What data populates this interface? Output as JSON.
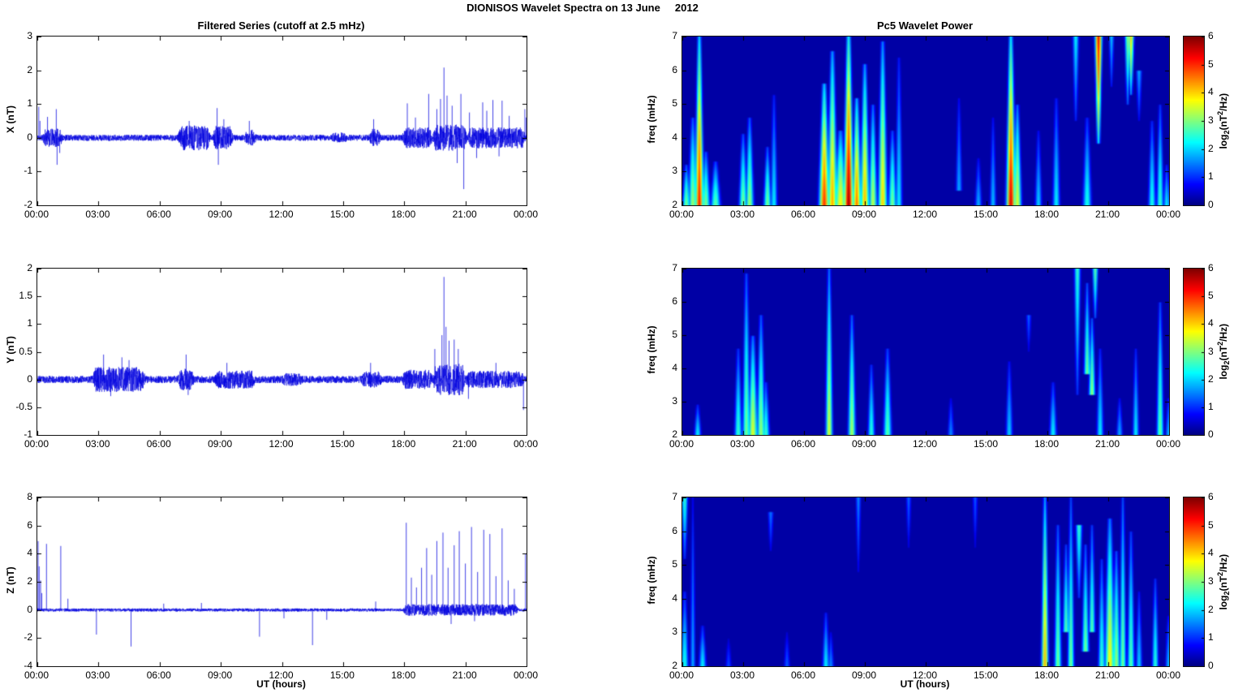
{
  "page_title": "DIONISOS Wavelet Spectra on 13 June     2012",
  "panel_titles": {
    "left": "Filtered Series (cutoff at 2.5 mHz)",
    "right": "Pc5 Wavelet Power"
  },
  "axis": {
    "time_label": "UT (hours)",
    "time_ticks": [
      "00:00",
      "03:00",
      "06:00",
      "09:00",
      "12:00",
      "15:00",
      "18:00",
      "21:00",
      "00:00"
    ],
    "time_hours": [
      0,
      3,
      6,
      9,
      12,
      15,
      18,
      21,
      24
    ]
  },
  "colorbar": {
    "range": [
      0,
      6
    ],
    "ticks": [
      0,
      1,
      2,
      3,
      4,
      5,
      6
    ],
    "label": {
      "pre": "log",
      "sub": "2",
      "mid": "(nT",
      "sup": "2",
      "post": "/Hz)"
    }
  },
  "colors": {
    "series_line": "#0000DE",
    "spec_background": "#0000A5",
    "axis": "#000000",
    "text": "#000000"
  },
  "chart_data": [
    {
      "id": "ts-x",
      "type": "line",
      "kind": "ts",
      "row": 0,
      "seed": 11,
      "ylabel": "X (nT)",
      "ylim": [
        -2,
        3
      ],
      "yticks": [
        -2,
        -1,
        0,
        1,
        2,
        3
      ],
      "xlim_hours": [
        0,
        24
      ],
      "baseline": 0.09,
      "bursts": [
        [
          0.25,
          1.25,
          0.18
        ],
        [
          6.9,
          8.5,
          0.28
        ],
        [
          8.6,
          9.6,
          0.26
        ],
        [
          10.15,
          10.75,
          0.15
        ],
        [
          14.4,
          15.2,
          0.07
        ],
        [
          16.25,
          16.85,
          0.18
        ],
        [
          17.9,
          19.4,
          0.22
        ],
        [
          19.4,
          21.1,
          0.3
        ],
        [
          21.1,
          23.95,
          0.22
        ]
      ],
      "spikes": [
        [
          0.07,
          0.92
        ],
        [
          0.13,
          0.5
        ],
        [
          0.5,
          0.62
        ],
        [
          0.93,
          0.85
        ],
        [
          0.97,
          -0.8
        ],
        [
          1.1,
          -0.45
        ],
        [
          7.45,
          0.5
        ],
        [
          8.82,
          0.88
        ],
        [
          8.88,
          -0.8
        ],
        [
          9.15,
          0.55
        ],
        [
          10.4,
          0.5
        ],
        [
          16.5,
          0.55
        ],
        [
          18.15,
          1.02
        ],
        [
          18.55,
          0.6
        ],
        [
          19.2,
          1.3
        ],
        [
          19.6,
          0.85
        ],
        [
          19.78,
          1.15
        ],
        [
          19.95,
          2.08
        ],
        [
          20.1,
          1.25
        ],
        [
          20.35,
          0.95
        ],
        [
          20.6,
          -0.75
        ],
        [
          20.78,
          1.3
        ],
        [
          20.92,
          -1.52
        ],
        [
          21.2,
          0.75
        ],
        [
          21.55,
          -0.6
        ],
        [
          21.85,
          1.05
        ],
        [
          22.05,
          0.8
        ],
        [
          22.35,
          1.12
        ],
        [
          22.65,
          -0.55
        ],
        [
          22.8,
          1.1
        ],
        [
          23.15,
          0.65
        ],
        [
          23.92,
          0.85
        ],
        [
          23.99,
          0.6
        ]
      ]
    },
    {
      "id": "spec-x",
      "type": "heatmap",
      "kind": "spec",
      "row": 0,
      "ylabel": "freq (mHz)",
      "ylim": [
        2,
        7
      ],
      "yticks": [
        2,
        3,
        4,
        5,
        6,
        7
      ],
      "xlim_hours": [
        0,
        24
      ],
      "value_range": [
        0,
        6
      ],
      "background_value": 0.22,
      "blobs": [
        [
          0.15,
          2,
          3.2,
          0.1,
          3,
          0
        ],
        [
          0.45,
          2,
          4.6,
          0.12,
          3.2,
          0
        ],
        [
          0.8,
          2,
          7.1,
          0.11,
          5.2,
          0
        ],
        [
          1.1,
          2,
          3.6,
          0.12,
          3,
          0
        ],
        [
          1.6,
          2,
          3.3,
          0.14,
          2.8,
          0
        ],
        [
          2.95,
          2,
          4.1,
          0.11,
          3,
          0
        ],
        [
          3.3,
          2,
          4.6,
          0.11,
          3.2,
          0
        ],
        [
          4.15,
          2,
          3.7,
          0.1,
          3,
          0
        ],
        [
          4.45,
          2,
          5.3,
          0.09,
          2.2,
          0
        ],
        [
          6.95,
          2,
          5.6,
          0.14,
          5,
          0
        ],
        [
          7.35,
          2,
          6.6,
          0.13,
          4.3,
          0
        ],
        [
          7.75,
          2,
          4.2,
          0.18,
          3.8,
          0
        ],
        [
          8.15,
          2,
          7.1,
          0.13,
          5.8,
          0
        ],
        [
          8.55,
          2,
          5.2,
          0.12,
          4.6,
          0
        ],
        [
          8.95,
          2,
          6.2,
          0.12,
          4.2,
          0
        ],
        [
          9.35,
          2,
          5,
          0.11,
          3.4,
          0
        ],
        [
          9.85,
          2,
          6.9,
          0.12,
          4,
          0
        ],
        [
          10.3,
          2,
          4.2,
          0.11,
          3,
          0
        ],
        [
          10.6,
          2,
          6.4,
          0.09,
          2.2,
          0
        ],
        [
          13.6,
          2.4,
          5.2,
          0.08,
          1.8,
          0
        ],
        [
          14.6,
          2,
          3.4,
          0.09,
          1.8,
          0
        ],
        [
          15.3,
          2,
          4.6,
          0.08,
          1.9,
          0
        ],
        [
          16.15,
          2,
          7.1,
          0.12,
          5.5,
          0
        ],
        [
          16.45,
          2,
          5,
          0.11,
          3.6,
          0
        ],
        [
          17.5,
          2,
          4.2,
          0.09,
          2,
          0
        ],
        [
          18.4,
          2,
          5.2,
          0.1,
          2.2,
          0
        ],
        [
          19.35,
          4.5,
          7.2,
          0.08,
          2.3,
          1
        ],
        [
          19.9,
          2,
          4.6,
          0.12,
          2.4,
          0
        ],
        [
          20.5,
          3.8,
          7.3,
          0.09,
          5.6,
          1
        ],
        [
          21.1,
          5.5,
          7.1,
          0.06,
          2,
          1
        ],
        [
          21.9,
          5,
          7.2,
          0.07,
          3.2,
          1
        ],
        [
          22.1,
          5.3,
          7.25,
          0.08,
          4.2,
          1
        ],
        [
          22.5,
          4.5,
          6,
          0.07,
          1.8,
          1
        ],
        [
          23.15,
          2,
          4.5,
          0.1,
          2.4,
          0
        ],
        [
          23.55,
          2,
          5,
          0.09,
          2.6,
          0
        ],
        [
          23.85,
          2,
          3.2,
          0.08,
          2.2,
          0
        ]
      ]
    },
    {
      "id": "ts-y",
      "type": "line",
      "kind": "ts",
      "row": 1,
      "seed": 23,
      "ylabel": "Y (nT)",
      "ylim": [
        -1,
        2
      ],
      "yticks": [
        -1,
        -0.5,
        0,
        0.5,
        1,
        1.5,
        2
      ],
      "xlim_hours": [
        0,
        24
      ],
      "baseline": 0.065,
      "bursts": [
        [
          2.7,
          5.3,
          0.16
        ],
        [
          6.9,
          7.7,
          0.13
        ],
        [
          8.7,
          10.7,
          0.1
        ],
        [
          12.0,
          13.0,
          0.05
        ],
        [
          15.9,
          16.9,
          0.08
        ],
        [
          17.9,
          19.4,
          0.11
        ],
        [
          19.4,
          21.0,
          0.22
        ],
        [
          21.0,
          23.9,
          0.09
        ]
      ],
      "spikes": [
        [
          3.25,
          0.45
        ],
        [
          3.6,
          -0.3
        ],
        [
          4.15,
          0.4
        ],
        [
          4.5,
          0.35
        ],
        [
          7.3,
          0.45
        ],
        [
          7.4,
          -0.28
        ],
        [
          9.3,
          0.3
        ],
        [
          16.35,
          0.3
        ],
        [
          19.5,
          0.55
        ],
        [
          19.85,
          0.8
        ],
        [
          19.95,
          1.85
        ],
        [
          20.05,
          0.95
        ],
        [
          20.2,
          0.7
        ],
        [
          20.45,
          0.72
        ],
        [
          20.65,
          0.55
        ],
        [
          21.15,
          -0.35
        ],
        [
          22.5,
          0.3
        ],
        [
          23.85,
          -0.55
        ]
      ]
    },
    {
      "id": "spec-y",
      "type": "heatmap",
      "kind": "spec",
      "row": 1,
      "ylabel": "freq (mHz)",
      "ylim": [
        2,
        7
      ],
      "yticks": [
        2,
        3,
        4,
        5,
        6,
        7
      ],
      "xlim_hours": [
        0,
        24
      ],
      "value_range": [
        0,
        6
      ],
      "background_value": 0.22,
      "blobs": [
        [
          0.7,
          2,
          2.9,
          0.09,
          2.2,
          0
        ],
        [
          2.7,
          2,
          4.6,
          0.1,
          2.6,
          0
        ],
        [
          3.1,
          2,
          6.9,
          0.1,
          3,
          0
        ],
        [
          3.45,
          2,
          5,
          0.13,
          3.6,
          0
        ],
        [
          3.8,
          2,
          5.6,
          0.11,
          3.2,
          0
        ],
        [
          4.1,
          2,
          3.6,
          0.1,
          2.6,
          0
        ],
        [
          7.2,
          2,
          7.1,
          0.09,
          3.6,
          0
        ],
        [
          8.35,
          2,
          5.6,
          0.1,
          3.3,
          0
        ],
        [
          9.3,
          2,
          4.1,
          0.09,
          2.5,
          0
        ],
        [
          10.1,
          2,
          4.6,
          0.11,
          2.8,
          0
        ],
        [
          13.2,
          2,
          3.1,
          0.08,
          1.6,
          0
        ],
        [
          16.05,
          2,
          4.2,
          0.09,
          2,
          0
        ],
        [
          17.0,
          4.5,
          5.6,
          0.06,
          1.4,
          1
        ],
        [
          18.2,
          2,
          3.6,
          0.1,
          2.2,
          0
        ],
        [
          19.45,
          3.2,
          7.2,
          0.08,
          2.6,
          1
        ],
        [
          19.9,
          3.8,
          6.6,
          0.08,
          3,
          0
        ],
        [
          20.15,
          3.2,
          5.5,
          0.08,
          3.2,
          0
        ],
        [
          20.35,
          5.5,
          7.25,
          0.07,
          3,
          1
        ],
        [
          20.55,
          2,
          4.6,
          0.09,
          2.2,
          0
        ],
        [
          21.5,
          2,
          3.1,
          0.08,
          1.8,
          0
        ],
        [
          22.3,
          2,
          4.6,
          0.08,
          2.2,
          0
        ],
        [
          23.55,
          2,
          6,
          0.09,
          2.9,
          0
        ],
        [
          23.9,
          2,
          3.1,
          0.07,
          1.8,
          0
        ]
      ]
    },
    {
      "id": "ts-z",
      "type": "line",
      "kind": "ts",
      "row": 2,
      "seed": 37,
      "ylabel": "Z (nT)",
      "ylim": [
        -4,
        8
      ],
      "yticks": [
        -4,
        -2,
        0,
        2,
        4,
        6,
        8
      ],
      "xlim_hours": [
        0,
        24
      ],
      "baseline": 0.11,
      "bursts": [
        [
          17.95,
          23.6,
          0.3
        ]
      ],
      "spikes": [
        [
          0.04,
          4.9
        ],
        [
          0.09,
          3.1
        ],
        [
          0.16,
          2.1
        ],
        [
          0.22,
          1.2
        ],
        [
          0.45,
          4.7
        ],
        [
          1.15,
          4.55
        ],
        [
          1.5,
          0.8
        ],
        [
          2.9,
          -1.75
        ],
        [
          4.6,
          -2.6
        ],
        [
          6.2,
          0.45
        ],
        [
          8.05,
          0.5
        ],
        [
          10.9,
          -1.9
        ],
        [
          12.1,
          -0.6
        ],
        [
          13.5,
          -2.5
        ],
        [
          14.2,
          -0.7
        ],
        [
          16.6,
          0.6
        ],
        [
          18.1,
          6.2
        ],
        [
          18.35,
          2.3
        ],
        [
          18.6,
          1.6
        ],
        [
          18.85,
          3.0
        ],
        [
          19.1,
          4.4
        ],
        [
          19.35,
          2.5
        ],
        [
          19.6,
          4.9
        ],
        [
          19.9,
          5.5
        ],
        [
          20.15,
          3.0
        ],
        [
          20.3,
          -1.0
        ],
        [
          20.45,
          4.6
        ],
        [
          20.7,
          5.6
        ],
        [
          21.0,
          3.3
        ],
        [
          21.3,
          5.9
        ],
        [
          21.45,
          -0.8
        ],
        [
          21.6,
          2.7
        ],
        [
          21.9,
          5.7
        ],
        [
          22.2,
          5.4
        ],
        [
          22.5,
          2.4
        ],
        [
          22.8,
          5.8
        ],
        [
          23.1,
          2.1
        ],
        [
          23.4,
          1.5
        ],
        [
          23.95,
          4.0
        ]
      ]
    },
    {
      "id": "spec-z",
      "type": "heatmap",
      "kind": "spec",
      "row": 2,
      "ylabel": "freq (mHz)",
      "ylim": [
        2,
        7
      ],
      "yticks": [
        2,
        3,
        4,
        5,
        6,
        7
      ],
      "xlim_hours": [
        0,
        24
      ],
      "value_range": [
        0,
        6
      ],
      "background_value": 0.22,
      "blobs": [
        [
          0.05,
          5.2,
          7.1,
          0.08,
          2.6,
          1
        ],
        [
          0.1,
          2,
          4.2,
          0.1,
          2.4,
          0
        ],
        [
          0.5,
          2,
          7,
          0.06,
          1.8,
          0
        ],
        [
          0.95,
          2,
          3.2,
          0.1,
          2.2,
          0
        ],
        [
          2.2,
          2,
          2.8,
          0.08,
          1.2,
          0
        ],
        [
          4.3,
          5.4,
          6.6,
          0.07,
          1.5,
          1
        ],
        [
          5.15,
          2,
          3,
          0.08,
          1.3,
          0
        ],
        [
          7.05,
          2,
          3.6,
          0.09,
          2.2,
          0
        ],
        [
          7.3,
          2,
          3,
          0.08,
          1.6,
          0
        ],
        [
          8.6,
          4.8,
          7,
          0.06,
          1.6,
          1
        ],
        [
          11.1,
          5.5,
          7,
          0.06,
          1.4,
          1
        ],
        [
          14.4,
          5.5,
          7,
          0.06,
          1.3,
          1
        ],
        [
          17.85,
          2,
          7.2,
          0.09,
          4.2,
          0
        ],
        [
          18.5,
          2,
          6.2,
          0.09,
          3,
          0
        ],
        [
          18.85,
          3,
          5.6,
          0.08,
          2.8,
          0
        ],
        [
          19.15,
          2,
          7,
          0.08,
          3,
          0
        ],
        [
          19.55,
          4,
          6.2,
          0.08,
          2.6,
          1
        ],
        [
          19.85,
          2.4,
          5.6,
          0.09,
          3,
          0
        ],
        [
          20.15,
          3,
          6.2,
          0.08,
          2.8,
          0
        ],
        [
          20.6,
          2,
          5.2,
          0.09,
          2.6,
          0
        ],
        [
          21.0,
          2,
          6.4,
          0.14,
          3.8,
          0
        ],
        [
          21.35,
          2,
          5.4,
          0.1,
          3.2,
          0
        ],
        [
          21.7,
          2,
          7.1,
          0.08,
          3,
          0
        ],
        [
          22.05,
          2,
          6,
          0.09,
          2.8,
          0
        ],
        [
          22.5,
          2,
          4.2,
          0.08,
          2,
          0
        ],
        [
          23.3,
          2,
          4.6,
          0.08,
          2.5,
          0
        ],
        [
          23.9,
          2,
          3.5,
          0.07,
          1.8,
          0
        ]
      ]
    }
  ]
}
